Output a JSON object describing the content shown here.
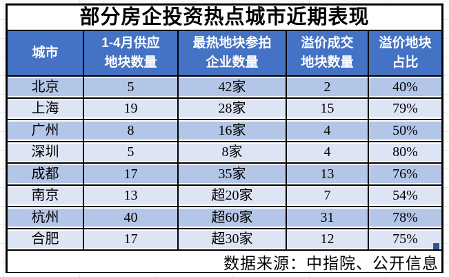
{
  "chart_data": {
    "type": "table",
    "title": "部分房企投资热点城市近期表现",
    "columns": [
      "城市",
      "1-4月供应\n地块数量",
      "最热地块参拍\n企业数量",
      "溢价成交\n地块数量",
      "溢价地块\n占比"
    ],
    "rows": [
      [
        "北京",
        "5",
        "42家",
        "2",
        "40%"
      ],
      [
        "上海",
        "19",
        "28家",
        "15",
        "79%"
      ],
      [
        "广州",
        "8",
        "16家",
        "4",
        "50%"
      ],
      [
        "深圳",
        "5",
        "8家",
        "4",
        "80%"
      ],
      [
        "成都",
        "17",
        "35家",
        "13",
        "76%"
      ],
      [
        "南京",
        "13",
        "超20家",
        "7",
        "54%"
      ],
      [
        "杭州",
        "40",
        "超60家",
        "31",
        "78%"
      ],
      [
        "合肥",
        "17",
        "超30家",
        "12",
        "75%"
      ]
    ],
    "source": "数据来源：中指院、公开信息"
  },
  "colors": {
    "header_bg": "#4472C4",
    "band_dark": "#B4C6E7",
    "band_light": "#DDE4F3",
    "border": "#000000",
    "fill_handle": "#2F5597"
  }
}
